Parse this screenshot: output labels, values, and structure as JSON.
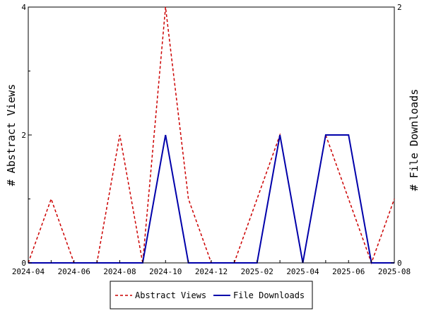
{
  "chart_data": {
    "type": "line",
    "x": [
      "2024-04",
      "2024-05",
      "2024-06",
      "2024-07",
      "2024-08",
      "2024-09",
      "2024-10",
      "2024-11",
      "2024-12",
      "2025-01",
      "2025-02",
      "2025-03",
      "2025-04",
      "2025-05",
      "2025-06",
      "2025-07",
      "2025-08"
    ],
    "x_tick_labels": [
      "2024-04",
      "2024-06",
      "2024-08",
      "2024-10",
      "2024-12",
      "2025-02",
      "2025-04",
      "2025-06",
      "2025-08"
    ],
    "series": [
      {
        "name": "Abstract Views",
        "axis": "left",
        "color": "#cc0000",
        "dash": "dashed",
        "values": [
          0,
          1,
          0,
          0,
          2,
          0,
          4,
          1,
          0,
          0,
          1,
          2,
          0,
          2,
          1,
          0,
          1
        ]
      },
      {
        "name": "File Downloads",
        "axis": "right",
        "color": "#0000aa",
        "dash": "solid",
        "values": [
          0,
          0,
          0,
          0,
          0,
          0,
          1,
          0,
          0,
          0,
          0,
          1,
          0,
          1,
          1,
          0,
          0
        ]
      }
    ],
    "ylabel_left": "# Abstract Views",
    "ylabel_right": "# File Downloads",
    "ylim_left": [
      0,
      4
    ],
    "ylim_right": [
      0,
      2
    ],
    "y_ticks_left": [
      0,
      2,
      4
    ],
    "y_ticks_right": [
      0,
      2
    ],
    "legend_position": "bottom",
    "grid": false
  }
}
